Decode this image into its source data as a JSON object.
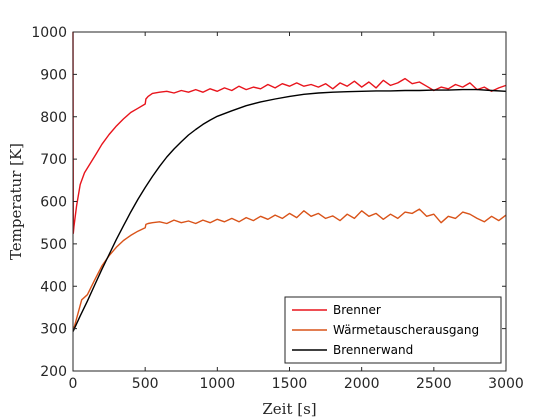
{
  "chart_data": {
    "type": "line",
    "xlabel": "Zeit [s]",
    "ylabel": "Temperatur [K]",
    "xlim": [
      0,
      3000
    ],
    "ylim": [
      200,
      1000
    ],
    "xticks": [
      0,
      500,
      1000,
      1500,
      2000,
      2500,
      3000
    ],
    "yticks": [
      200,
      300,
      400,
      500,
      600,
      700,
      800,
      900,
      1000
    ],
    "grid": false,
    "legend_position": "bottom-right",
    "series": [
      {
        "name": "Brenner",
        "color": "#e8141c",
        "x": [
          0,
          2,
          6,
          12,
          25,
          50,
          80,
          120,
          160,
          200,
          250,
          300,
          350,
          400,
          450,
          500,
          505,
          520,
          550,
          600,
          650,
          700,
          750,
          800,
          850,
          900,
          950,
          1000,
          1050,
          1100,
          1150,
          1200,
          1250,
          1300,
          1350,
          1400,
          1450,
          1500,
          1550,
          1600,
          1650,
          1700,
          1750,
          1800,
          1850,
          1900,
          1950,
          2000,
          2050,
          2100,
          2150,
          2200,
          2250,
          2300,
          2350,
          2400,
          2450,
          2500,
          2550,
          2600,
          2650,
          2700,
          2750,
          2800,
          2850,
          2900,
          2950,
          3000
        ],
        "y": [
          1000,
          525,
          540,
          555,
          590,
          640,
          668,
          690,
          712,
          735,
          758,
          778,
          795,
          810,
          820,
          830,
          842,
          848,
          855,
          858,
          860,
          856,
          862,
          858,
          864,
          858,
          866,
          860,
          868,
          862,
          872,
          864,
          870,
          866,
          876,
          868,
          878,
          872,
          880,
          872,
          876,
          870,
          878,
          866,
          880,
          872,
          884,
          870,
          882,
          868,
          886,
          874,
          880,
          890,
          878,
          882,
          872,
          862,
          870,
          866,
          876,
          870,
          880,
          864,
          870,
          860,
          868,
          874
        ]
      },
      {
        "name": "Wärmetauscherausgang",
        "color": "#d95319",
        "x": [
          0,
          10,
          30,
          60,
          100,
          150,
          200,
          250,
          300,
          350,
          400,
          450,
          500,
          505,
          520,
          550,
          600,
          650,
          700,
          750,
          800,
          850,
          900,
          950,
          1000,
          1050,
          1100,
          1150,
          1200,
          1250,
          1300,
          1350,
          1400,
          1450,
          1500,
          1550,
          1600,
          1650,
          1700,
          1750,
          1800,
          1850,
          1900,
          1950,
          2000,
          2050,
          2100,
          2150,
          2200,
          2250,
          2300,
          2350,
          2400,
          2450,
          2500,
          2550,
          2600,
          2650,
          2700,
          2750,
          2800,
          2850,
          2900,
          2950,
          3000
        ],
        "y": [
          295,
          305,
          330,
          368,
          380,
          415,
          448,
          472,
          492,
          508,
          520,
          530,
          538,
          546,
          548,
          550,
          552,
          548,
          556,
          550,
          554,
          548,
          556,
          550,
          558,
          552,
          560,
          552,
          562,
          555,
          565,
          558,
          568,
          560,
          572,
          562,
          578,
          565,
          572,
          560,
          566,
          555,
          570,
          560,
          578,
          565,
          572,
          558,
          570,
          560,
          575,
          572,
          582,
          565,
          570,
          550,
          565,
          560,
          575,
          570,
          560,
          552,
          565,
          555,
          568
        ]
      },
      {
        "name": "Brennerwand",
        "color": "#000000",
        "x": [
          0,
          50,
          100,
          150,
          200,
          250,
          300,
          350,
          400,
          450,
          500,
          550,
          600,
          650,
          700,
          750,
          800,
          850,
          900,
          950,
          1000,
          1100,
          1200,
          1300,
          1400,
          1500,
          1600,
          1700,
          1800,
          1900,
          2000,
          2100,
          2200,
          2300,
          2400,
          2500,
          2600,
          2700,
          2800,
          2900,
          3000
        ],
        "y": [
          293,
          330,
          365,
          403,
          440,
          475,
          510,
          543,
          575,
          605,
          633,
          659,
          683,
          705,
          724,
          741,
          757,
          770,
          782,
          792,
          801,
          814,
          826,
          835,
          842,
          848,
          853,
          856,
          858,
          859,
          860,
          861,
          861,
          862,
          862,
          863,
          863,
          864,
          864,
          862,
          860
        ]
      }
    ]
  }
}
